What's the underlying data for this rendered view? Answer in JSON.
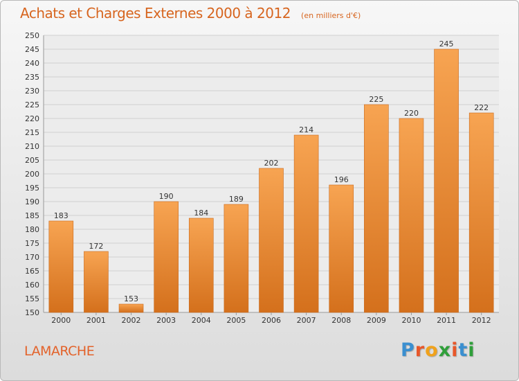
{
  "header": {
    "title": "Achats et Charges Externes 2000 à 2012",
    "unit": "(en milliers d'€)"
  },
  "footer": {
    "commune": "LAMARCHE",
    "logo_letters": [
      "P",
      "r",
      "o",
      "x",
      "i",
      "t",
      "i"
    ],
    "logo_colors": [
      "#3a8fd0",
      "#e8572a",
      "#f0a21c",
      "#2f9f3a",
      "#e8572a",
      "#3a8fd0",
      "#2f9f3a"
    ]
  },
  "colors": {
    "title": "#d7651f",
    "bar_top": "#f7a452",
    "bar_bottom": "#d4701c",
    "bar_edge": "#c96a1e"
  },
  "chart_data": {
    "type": "bar",
    "categories": [
      "2000",
      "2001",
      "2002",
      "2003",
      "2004",
      "2005",
      "2006",
      "2007",
      "2008",
      "2009",
      "2010",
      "2011",
      "2012"
    ],
    "values": [
      183,
      172,
      153,
      190,
      184,
      189,
      202,
      214,
      196,
      225,
      220,
      245,
      222
    ],
    "yticks": [
      150,
      155,
      160,
      165,
      170,
      175,
      180,
      185,
      190,
      195,
      200,
      205,
      210,
      215,
      220,
      225,
      230,
      235,
      240,
      245,
      250
    ],
    "ylim": [
      150,
      250
    ],
    "grid": true,
    "data_labels": true
  }
}
